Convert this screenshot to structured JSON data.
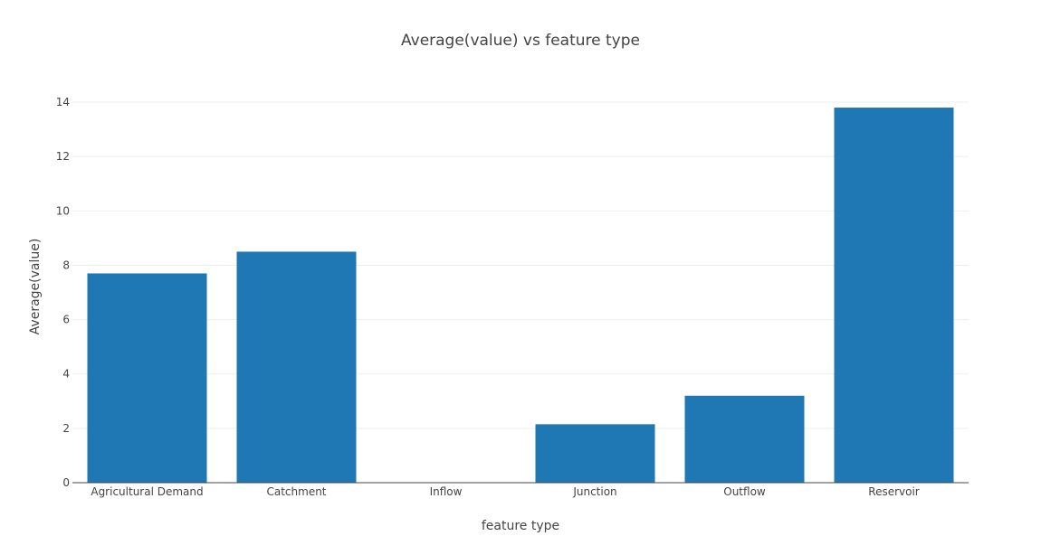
{
  "chart_data": {
    "type": "bar",
    "title": "Average(value) vs feature type",
    "xlabel": "feature type",
    "ylabel": "Average(value)",
    "categories": [
      "Agricultural Demand",
      "Catchment",
      "Inflow",
      "Junction",
      "Outflow",
      "Reservoir"
    ],
    "values": [
      7.7,
      8.5,
      0,
      2.15,
      3.2,
      13.8
    ],
    "ylim": [
      0,
      14.6
    ],
    "yticks": [
      "0",
      "2",
      "4",
      "6",
      "8",
      "10",
      "12",
      "14"
    ],
    "grid": true,
    "legend": "none",
    "bar_color": "#1f77b4"
  }
}
